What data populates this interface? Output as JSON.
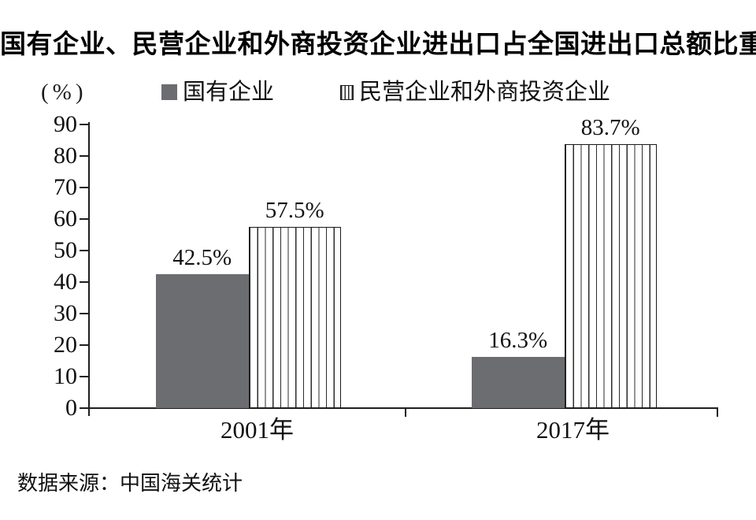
{
  "title": "国有企业、民营企业和外商投资企业进出口占全国进出口总额比重的变化",
  "unit_label": "(%)",
  "legend": [
    {
      "label": "国有企业",
      "swatch": "solid-gray-square"
    },
    {
      "label": "民营企业和外商投资企业",
      "swatch": "vertical-striped-square"
    }
  ],
  "source": "数据来源：中国海关统计",
  "colors": {
    "solid_bar": "#6b6d70",
    "axis": "#1f1f1f",
    "stripe_line": "#2b2b2b",
    "background": "#ffffff"
  },
  "chart_data": {
    "type": "bar",
    "title": "国有企业、民营企业和外商投资企业进出口占全国进出口总额比重的变化",
    "categories": [
      "2001年",
      "2017年"
    ],
    "series": [
      {
        "name": "国有企业",
        "style": "solid",
        "values": [
          42.5,
          16.3
        ],
        "labels": [
          "42.5%",
          "16.3%"
        ]
      },
      {
        "name": "民营企业和外商投资企业",
        "style": "striped",
        "values": [
          57.5,
          83.7
        ],
        "labels": [
          "57.5%",
          "83.7%"
        ]
      }
    ],
    "ylabel": "(%)",
    "ylim": [
      0,
      90
    ],
    "yticks": [
      0,
      10,
      20,
      30,
      40,
      50,
      60,
      70,
      80,
      90
    ],
    "grid": false,
    "legend_position": "top",
    "value_labels_shown": true,
    "source": "数据来源：中国海关统计"
  }
}
